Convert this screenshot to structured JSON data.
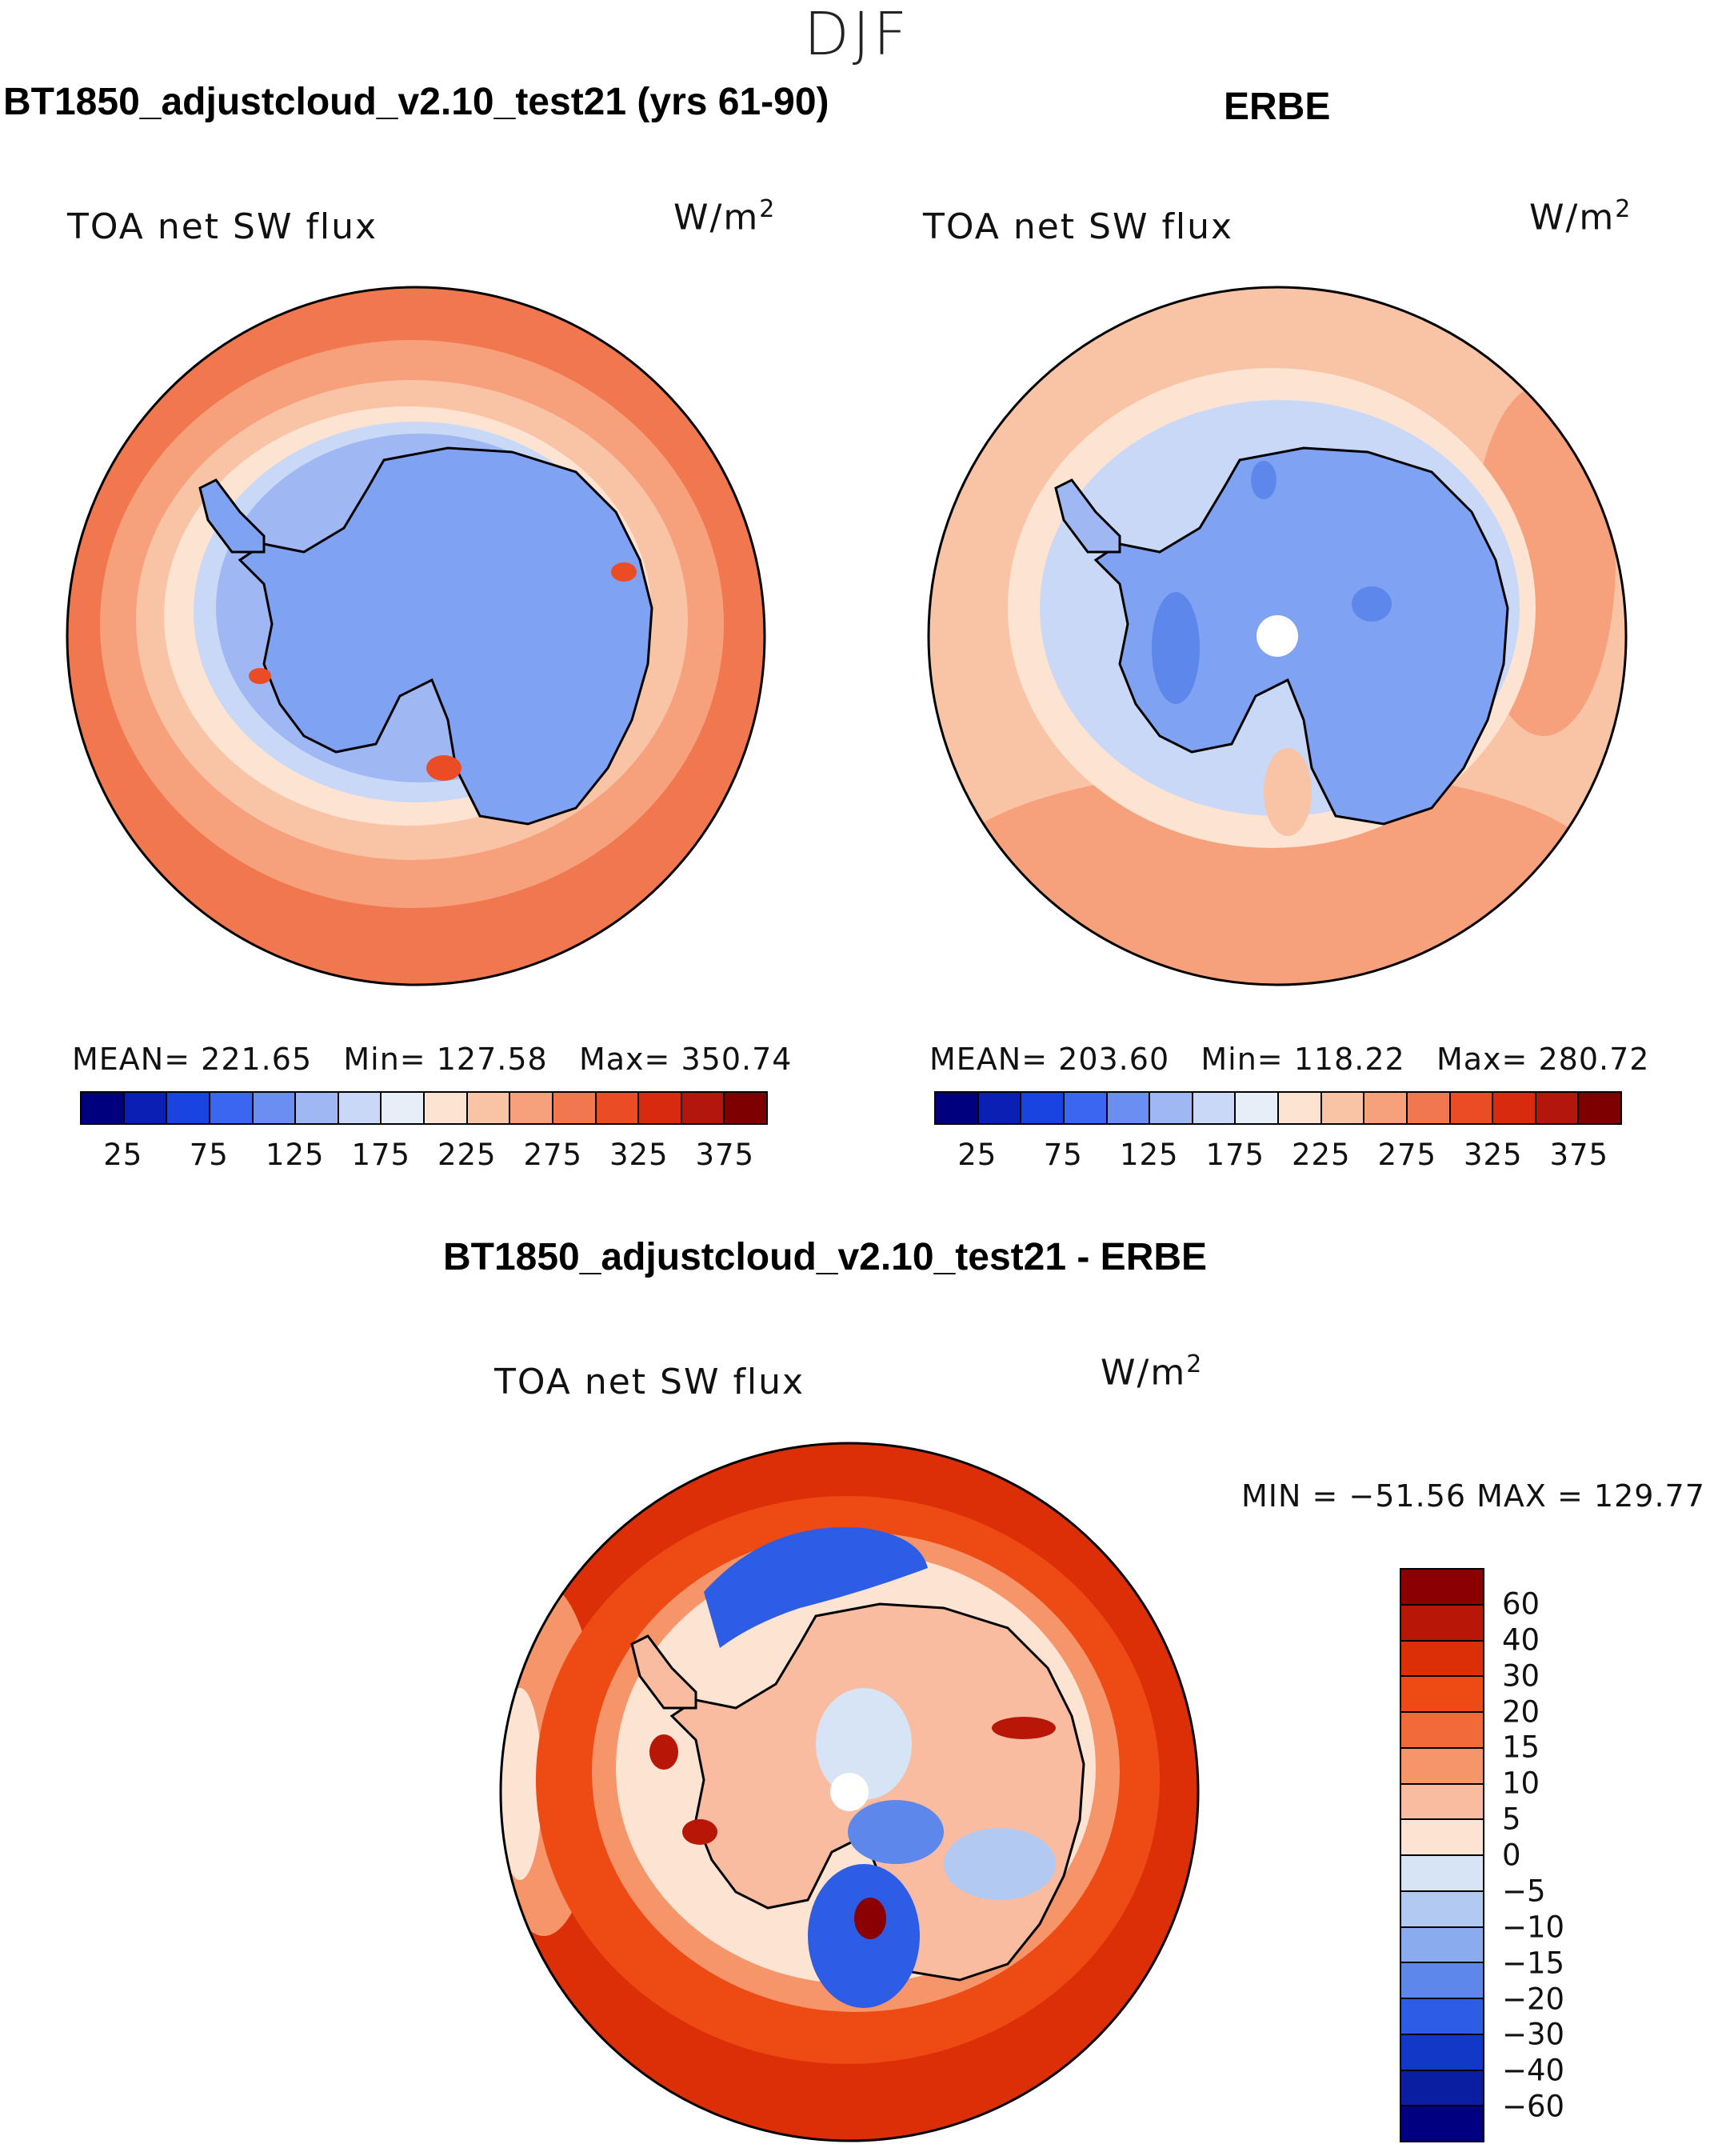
{
  "season": "DJF",
  "panels": {
    "model": {
      "title": "BT1850_adjustcloud_v2.10_test21 (yrs 61-90)",
      "variable": "TOA net SW flux",
      "units_base": "W/m",
      "units_exp": "2",
      "mean_label": "MEAN=",
      "mean": "221.65",
      "min_label": "Min=",
      "min": "127.58",
      "max_label": "Max=",
      "max": "350.74"
    },
    "obs": {
      "title": "ERBE",
      "variable": "TOA net SW flux",
      "units_base": "W/m",
      "units_exp": "2",
      "mean_label": "MEAN=",
      "mean": "203.60",
      "min_label": "Min=",
      "min": "118.22",
      "max_label": "Max=",
      "max": "280.72"
    },
    "diff": {
      "title": "BT1850_adjustcloud_v2.10_test21 - ERBE",
      "variable": "TOA net SW flux",
      "units_base": "W/m",
      "units_exp": "2",
      "minmax": "MIN = −51.56 MAX = 129.77"
    }
  },
  "colorbar_abs": {
    "ticks": [
      "25",
      "75",
      "125",
      "175",
      "225",
      "275",
      "325",
      "375"
    ],
    "colors": [
      "#00007f",
      "#0a1fb4",
      "#1a44e0",
      "#3a66f0",
      "#6a8ef2",
      "#9fb8f4",
      "#c9d8f6",
      "#e6eef8",
      "#fde4d2",
      "#f9c3a6",
      "#f6a07c",
      "#f1774f",
      "#ea4d25",
      "#d82a0e",
      "#b3160a",
      "#7f0000"
    ]
  },
  "colorbar_diff": {
    "ticks": [
      "60",
      "40",
      "30",
      "20",
      "15",
      "10",
      "5",
      "0",
      "−5",
      "−10",
      "−15",
      "−20",
      "−30",
      "−40",
      "−60"
    ],
    "colors": [
      "#8b0000",
      "#b81606",
      "#dc2f07",
      "#ee4a14",
      "#f36a3a",
      "#f6946a",
      "#f9bca0",
      "#fde4d2",
      "#d6e4f6",
      "#b2c9f2",
      "#8aacee",
      "#5d87ea",
      "#2d5de4",
      "#1238c8",
      "#0a1ea2",
      "#000080"
    ]
  },
  "map_colors": {
    "ocean_warm": "#f1774f",
    "ocean_mid": "#f6a07c",
    "ocean_light": "#f9c3a6",
    "ocean_pale": "#fde4d2",
    "ice_pale": "#c9d8f6",
    "ice_light": "#9fb8f4",
    "ice": "#7fa2f3",
    "ice_dark": "#5d87ea",
    "diff_red": "#dc2f07",
    "diff_red2": "#ee4a14",
    "diff_blue": "#2d5de4",
    "diff_dark_blue": "#0a1ea2"
  }
}
